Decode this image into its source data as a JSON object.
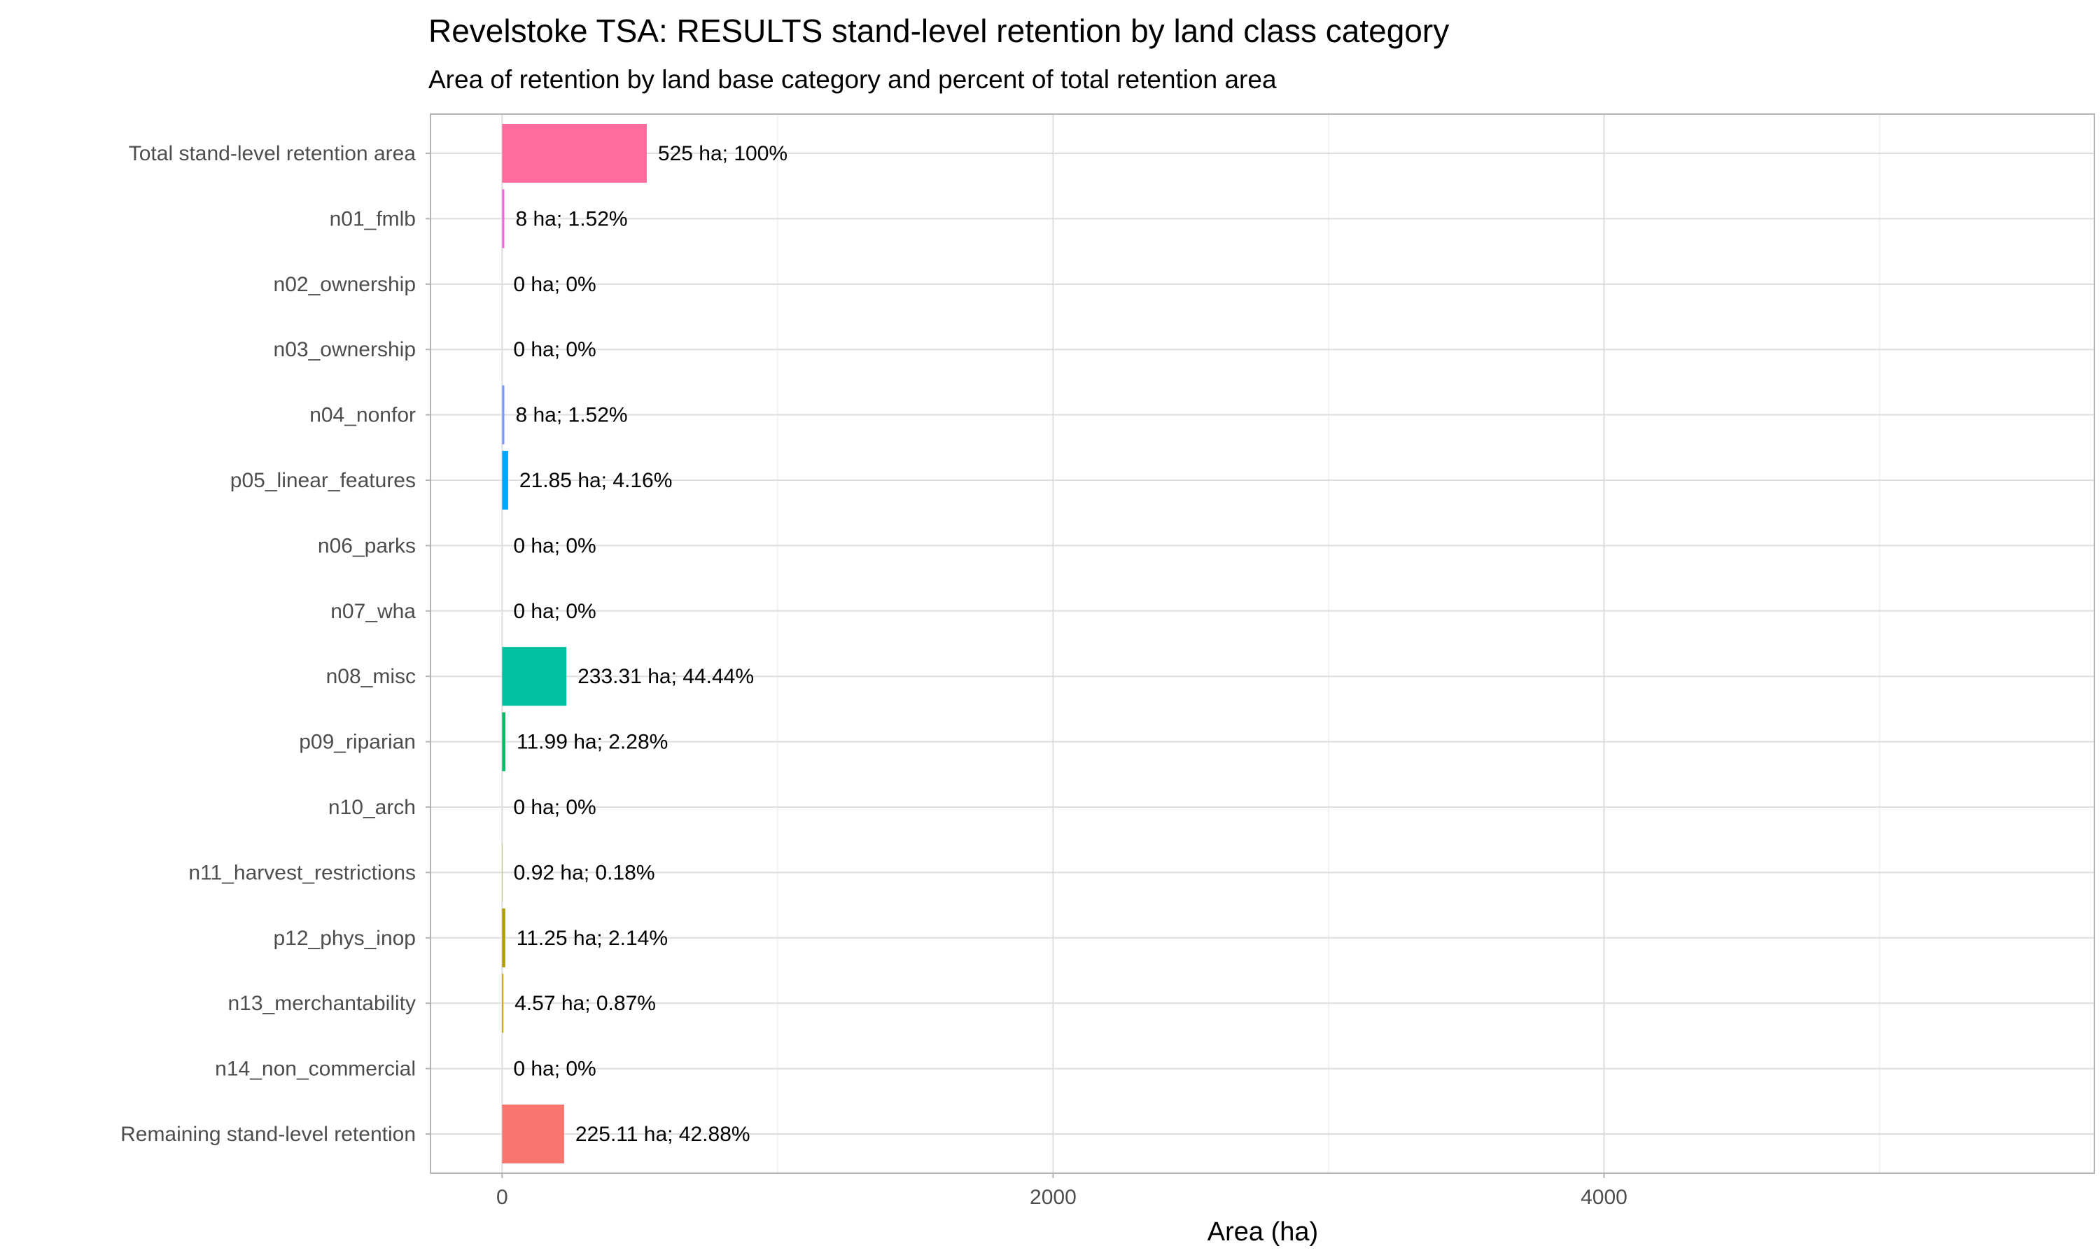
{
  "chart_data": {
    "type": "bar",
    "orientation": "horizontal",
    "title": "Revelstoke TSA: RESULTS stand-level retention by land class category",
    "subtitle": "Area of retention by land base category and percent of total retention area",
    "xlabel": "Area (ha)",
    "ylabel": "",
    "xlim": [
      -260,
      5780
    ],
    "xticks": [
      0,
      2000,
      4000
    ],
    "xtick_labels": [
      "0",
      "2000",
      "4000"
    ],
    "minor_xticks": [
      1000,
      3000,
      5000
    ],
    "grid": true,
    "legend": "none",
    "categories": [
      "Total stand-level retention area",
      "n01_fmlb",
      "n02_ownership",
      "n03_ownership",
      "n04_nonfor",
      "p05_linear_features",
      "n06_parks",
      "n07_wha",
      "n08_misc",
      "p09_riparian",
      "n10_arch",
      "n11_harvest_restrictions",
      "p12_phys_inop",
      "n13_merchantability",
      "n14_non_commercial",
      "Remaining stand-level retention"
    ],
    "values": [
      525,
      8,
      0,
      0,
      8,
      21.85,
      0,
      0,
      233.31,
      11.99,
      0,
      0.92,
      11.25,
      4.57,
      0,
      225.11
    ],
    "data_labels": [
      "525 ha; 100%",
      "8 ha; 1.52%",
      "0 ha; 0%",
      "0 ha; 0%",
      "8 ha; 1.52%",
      "21.85 ha; 4.16%",
      "0 ha; 0%",
      "0 ha; 0%",
      "233.31 ha; 44.44%",
      "11.99 ha; 2.28%",
      "0 ha; 0%",
      "0.92 ha; 0.18%",
      "11.25 ha; 2.14%",
      "4.57 ha; 0.87%",
      "0 ha; 0%",
      "225.11 ha; 42.88%"
    ],
    "colors": [
      "#FF6C9C",
      "#F763E0",
      "#D873FB",
      "#AE87FF",
      "#7997FF",
      "#00A6FF",
      "#00B0F6",
      "#00BBDA",
      "#00C19F",
      "#00BE67",
      "#7CAE00",
      "#9AA800",
      "#B09C00",
      "#C49A00",
      "#D89000",
      "#F8766D"
    ]
  }
}
